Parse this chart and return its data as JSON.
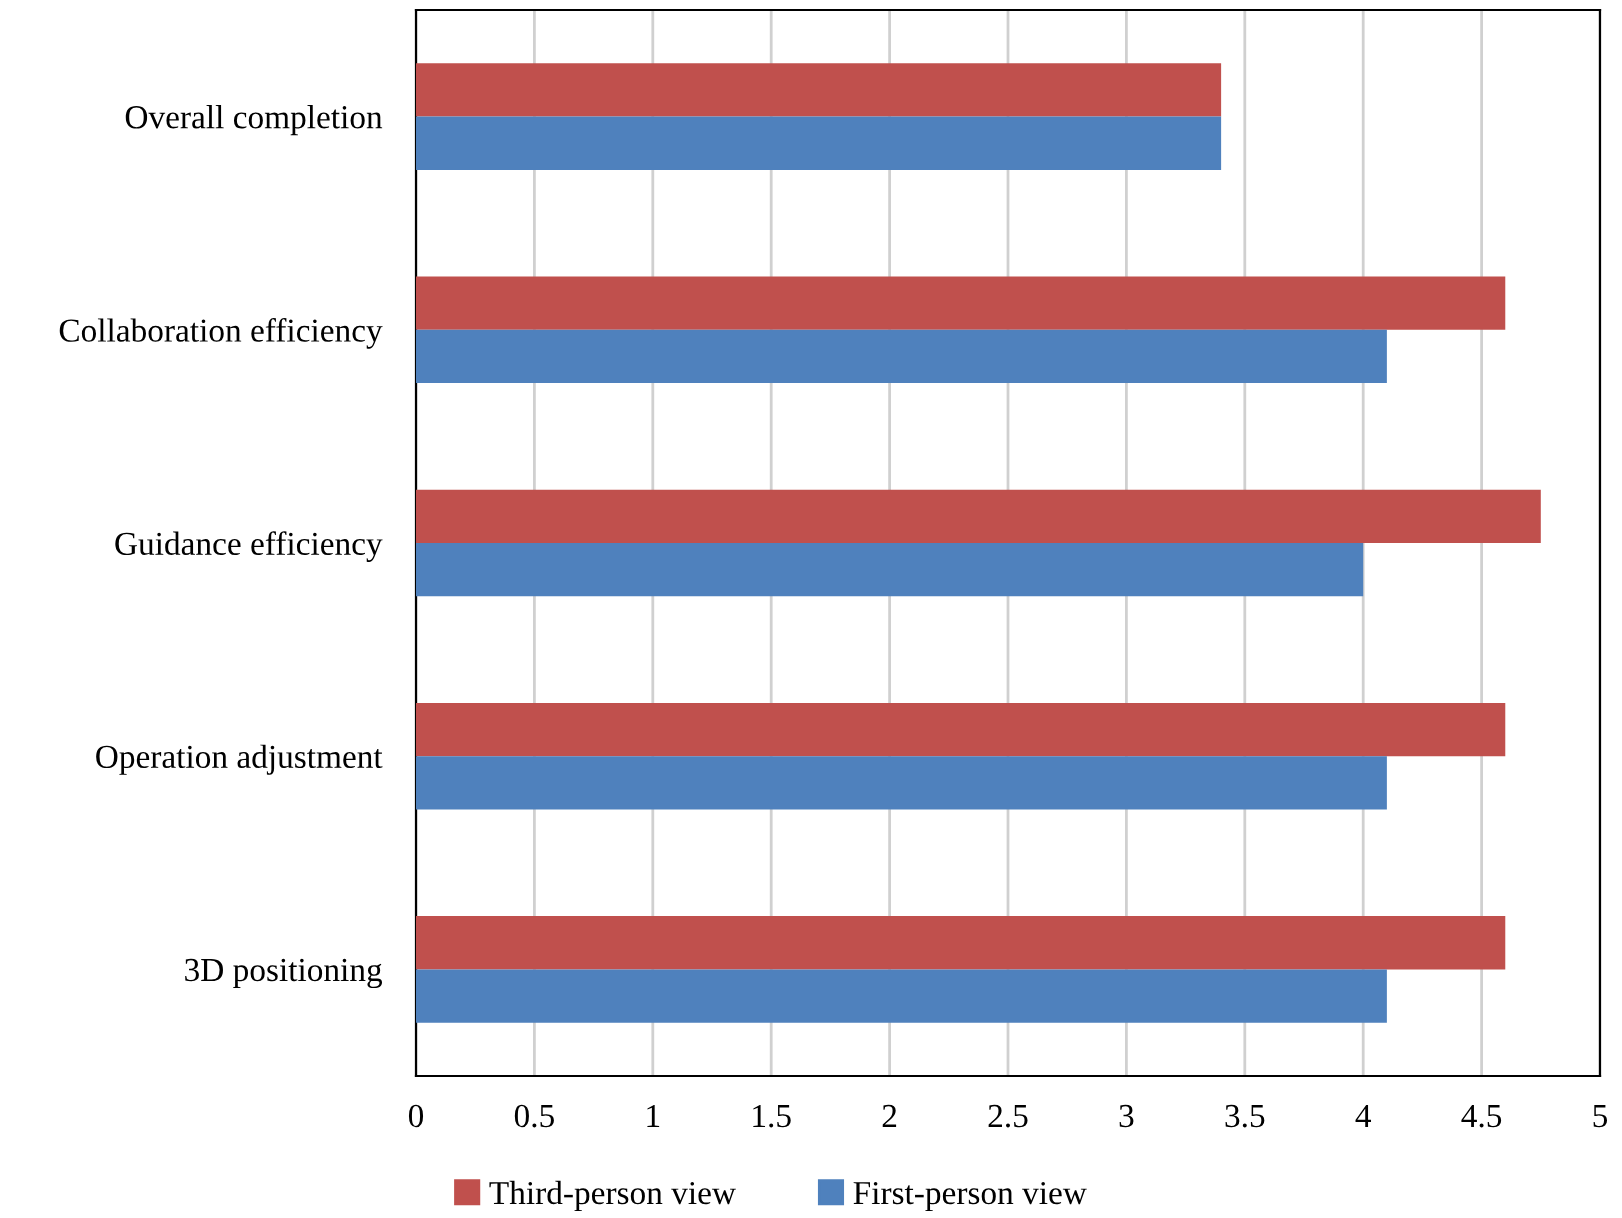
{
  "chart_data": {
    "type": "bar",
    "orientation": "horizontal",
    "categories": [
      "Overall completion",
      "Collaboration efficiency",
      "Guidance efficiency",
      "Operation adjustment",
      "3D positioning"
    ],
    "series": [
      {
        "name": "Third-person view",
        "color": "#c0504d",
        "values": [
          3.4,
          4.6,
          4.75,
          4.6,
          4.6
        ]
      },
      {
        "name": "First-person view",
        "color": "#4f81bd",
        "values": [
          3.4,
          4.1,
          4.0,
          4.1,
          4.1
        ]
      }
    ],
    "xlim": [
      0,
      5
    ],
    "xticks": [
      0,
      0.5,
      1,
      1.5,
      2,
      2.5,
      3,
      3.5,
      4,
      4.5,
      5
    ],
    "grid": "x",
    "legend": "bottom"
  }
}
